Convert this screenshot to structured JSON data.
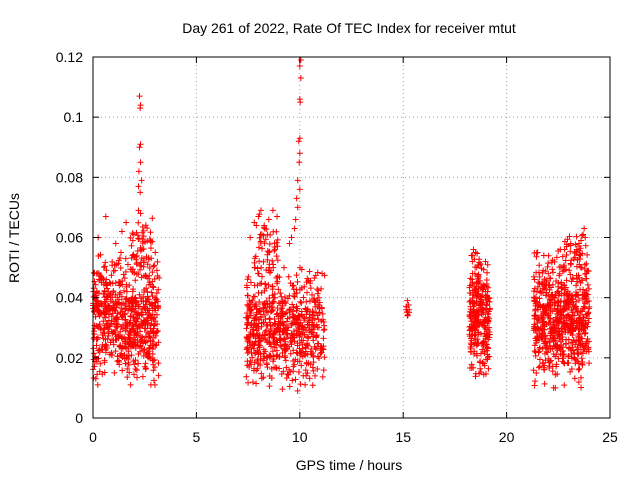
{
  "chart_data": {
    "type": "scatter",
    "title": "Day 261 of 2022, Rate Of TEC Index for receiver mtut",
    "xlabel": "GPS time / hours",
    "ylabel": "ROTI / TECUs",
    "xlim": [
      0,
      25
    ],
    "ylim": [
      0,
      0.12
    ],
    "xticks": [
      0,
      5,
      10,
      15,
      20,
      25
    ],
    "yticks": [
      0,
      0.02,
      0.04,
      0.06,
      0.08,
      0.1,
      0.12
    ],
    "grid": true,
    "marker": "+",
    "color": "#ff0000",
    "clusters": [
      {
        "x_range": [
          0.0,
          3.2
        ],
        "y_range": [
          0.011,
          0.055
        ],
        "count": 650
      },
      {
        "x_range": [
          1.8,
          3.0
        ],
        "y_range": [
          0.04,
          0.068
        ],
        "count": 60
      },
      {
        "x_range": [
          7.4,
          11.2
        ],
        "y_range": [
          0.009,
          0.05
        ],
        "count": 650
      },
      {
        "x_range": [
          7.8,
          9.0
        ],
        "y_range": [
          0.045,
          0.069
        ],
        "count": 50
      },
      {
        "x_range": [
          15.0,
          15.3
        ],
        "y_range": [
          0.034,
          0.039
        ],
        "count": 8
      },
      {
        "x_range": [
          18.2,
          19.2
        ],
        "y_range": [
          0.012,
          0.056
        ],
        "count": 280
      },
      {
        "x_range": [
          21.3,
          24.0
        ],
        "y_range": [
          0.01,
          0.056
        ],
        "count": 650
      },
      {
        "x_range": [
          22.8,
          23.9
        ],
        "y_range": [
          0.045,
          0.063
        ],
        "count": 30
      }
    ],
    "points": [
      [
        2.25,
        0.107
      ],
      [
        2.3,
        0.104
      ],
      [
        2.28,
        0.103
      ],
      [
        2.3,
        0.091
      ],
      [
        2.25,
        0.09
      ],
      [
        2.3,
        0.085
      ],
      [
        2.22,
        0.082
      ],
      [
        2.35,
        0.079
      ],
      [
        2.2,
        0.077
      ],
      [
        2.28,
        0.075
      ],
      [
        2.2,
        0.069
      ],
      [
        2.3,
        0.068
      ],
      [
        0.62,
        0.067
      ],
      [
        0.25,
        0.06
      ],
      [
        1.4,
        0.062
      ],
      [
        1.6,
        0.065
      ],
      [
        1.1,
        0.058
      ],
      [
        10.05,
        0.119
      ],
      [
        10.0,
        0.117
      ],
      [
        10.05,
        0.113
      ],
      [
        10.0,
        0.106
      ],
      [
        10.02,
        0.105
      ],
      [
        10.0,
        0.093
      ],
      [
        9.95,
        0.092
      ],
      [
        10.0,
        0.088
      ],
      [
        9.97,
        0.085
      ],
      [
        9.9,
        0.079
      ],
      [
        10.0,
        0.076
      ],
      [
        9.85,
        0.073
      ],
      [
        9.9,
        0.07
      ],
      [
        9.8,
        0.066
      ],
      [
        9.75,
        0.063
      ],
      [
        9.6,
        0.06
      ],
      [
        9.5,
        0.058
      ],
      [
        8.9,
        0.067
      ],
      [
        8.7,
        0.069
      ],
      [
        8.5,
        0.066
      ],
      [
        8.3,
        0.063
      ],
      [
        8.1,
        0.061
      ],
      [
        7.6,
        0.06
      ],
      [
        7.9,
        0.064
      ],
      [
        8.0,
        0.067
      ],
      [
        15.2,
        0.039
      ],
      [
        15.15,
        0.036
      ],
      [
        15.2,
        0.034
      ],
      [
        23.75,
        0.063
      ],
      [
        23.7,
        0.061
      ],
      [
        23.8,
        0.06
      ],
      [
        23.6,
        0.059
      ],
      [
        23.5,
        0.058
      ],
      [
        22.9,
        0.057
      ],
      [
        23.1,
        0.058
      ],
      [
        21.5,
        0.055
      ],
      [
        21.8,
        0.054
      ],
      [
        18.4,
        0.056
      ],
      [
        18.5,
        0.055
      ],
      [
        18.3,
        0.054
      ]
    ]
  }
}
